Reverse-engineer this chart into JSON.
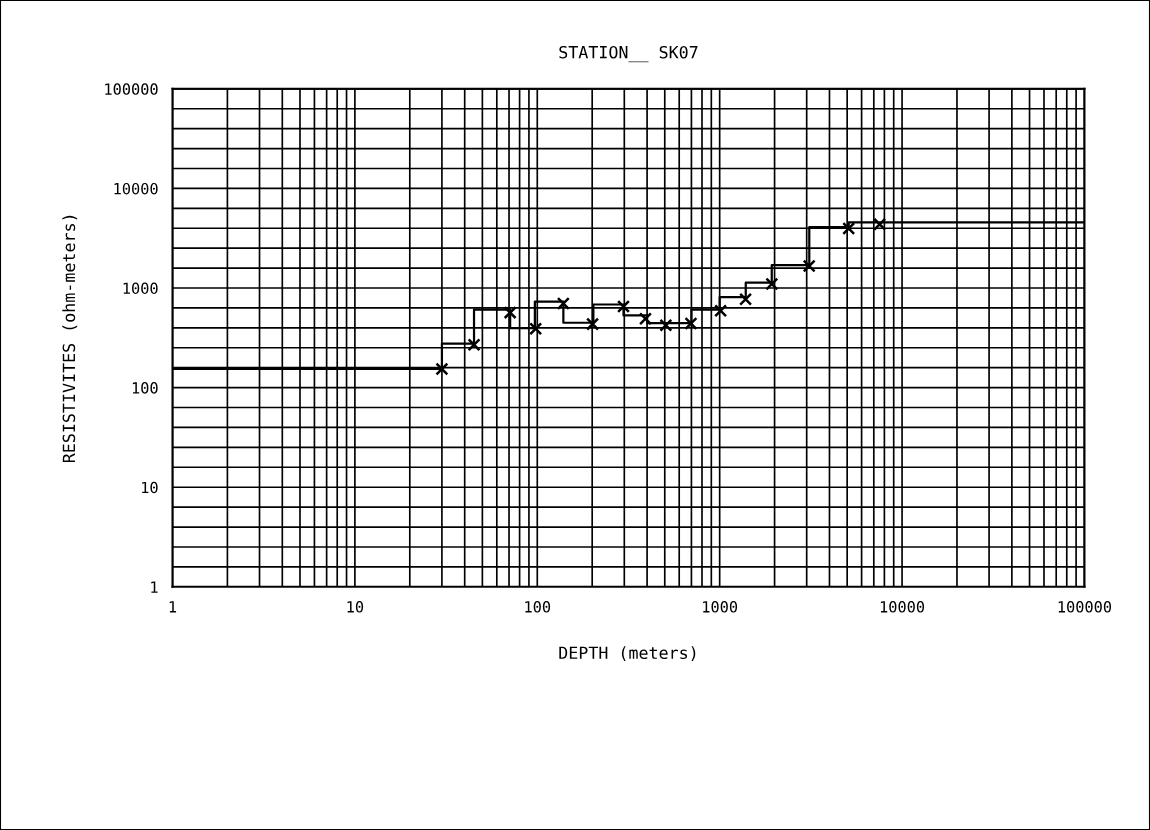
{
  "chart_data": {
    "type": "step",
    "title": "STATION__ SK07",
    "xlabel": "DEPTH (meters)",
    "ylabel": "RESISTIVITES (ohm-meters)",
    "log": "xy",
    "grid": true,
    "xlim": [
      1,
      100000
    ],
    "ylim": [
      1,
      100000
    ],
    "xticks": [
      1,
      10,
      100,
      1000,
      10000,
      100000
    ],
    "yticks": [
      1,
      10,
      100,
      1000,
      10000,
      100000
    ],
    "series": [
      {
        "color": "#000000",
        "marker": "none",
        "line_style": "solid",
        "x": [
          1,
          30,
          45,
          71,
          97,
          139,
          203,
          297,
          400,
          700,
          1000,
          1390,
          1930,
          3100,
          5100,
          100000
        ],
        "values": [
          154,
          277,
          607,
          395,
          730,
          448,
          683,
          530,
          445,
          607,
          809,
          1130,
          1695,
          4080,
          4560,
          4560
        ]
      },
      {
        "type": "scatter",
        "color": "#000000",
        "marker": "cross",
        "x": [
          30,
          45,
          71,
          98,
          139,
          201,
          297,
          392,
          507,
          696,
          1012,
          1387,
          1932,
          3097,
          5100,
          7540
        ],
        "values": [
          154,
          270,
          566,
          389,
          700,
          434,
          653,
          492,
          423,
          441,
          591,
          773,
          1095,
          1663,
          3950,
          4374
        ]
      }
    ]
  }
}
